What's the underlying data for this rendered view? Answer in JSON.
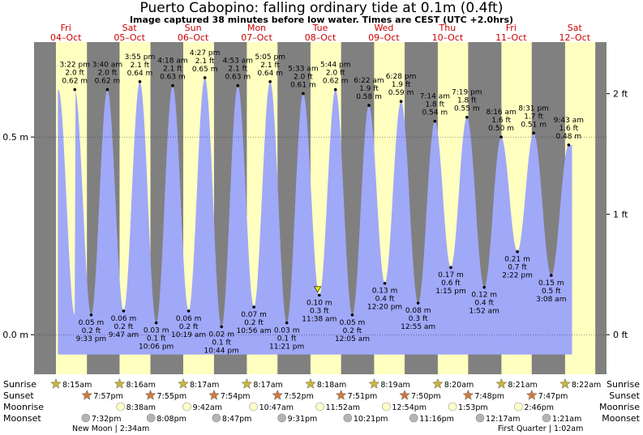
{
  "title": "Puerto Cabopino: falling  ordinary tide at 0.1m (0.4ft)",
  "subtitle": "Image captured 38 minutes before low water. Times are CEST (UTC +2.0hrs)",
  "colors": {
    "night": "#808080",
    "day": "#ffffc0",
    "water": "#a0a8f8",
    "day_label": "#cc0000",
    "sun_star": "#c8b43c",
    "sunset_star": "#d0783c",
    "moonrise": "#ffffc8",
    "moonset": "#b4b4b4",
    "current_marker": "#e8e800"
  },
  "days": [
    {
      "name": "Fri",
      "date": "04–Oct"
    },
    {
      "name": "Sat",
      "date": "05–Oct"
    },
    {
      "name": "Sun",
      "date": "06–Oct"
    },
    {
      "name": "Mon",
      "date": "07–Oct"
    },
    {
      "name": "Tue",
      "date": "08–Oct"
    },
    {
      "name": "Wed",
      "date": "09–Oct"
    },
    {
      "name": "Thu",
      "date": "10–Oct"
    },
    {
      "name": "Fri",
      "date": "11–Oct"
    },
    {
      "name": "Sat",
      "date": "12–Oct"
    }
  ],
  "chart_data": {
    "type": "area",
    "title": "Puerto Cabopino: falling  ordinary tide at 0.1m (0.4ft)",
    "left_axis": {
      "unit": "m",
      "ticks": [
        "0.5 m",
        "0.0 m"
      ],
      "values": [
        0.5,
        0.0
      ]
    },
    "right_axis": {
      "unit": "ft",
      "ticks": [
        "2 ft",
        "1 ft",
        "0 ft"
      ],
      "values": [
        2,
        1,
        0
      ]
    },
    "ylim": [
      -0.1,
      0.74
    ],
    "x_start": "2024-10-04 00:00",
    "x_end": "2024-10-12 23:59",
    "series_start": "2024-10-04 09:00",
    "series_end": "2024-10-12 11:00",
    "current_time": "2024-10-08 11:00",
    "tides": [
      {
        "time": "04-Oct 15:22",
        "label": "3:22 pm",
        "ft": "2.0 ft",
        "m": "0.62 m",
        "height": 0.62,
        "type": "high"
      },
      {
        "time": "04-Oct 21:33",
        "label": "9:33 pm",
        "ft": "0.2 ft",
        "m": "0.05 m",
        "height": 0.05,
        "type": "low"
      },
      {
        "time": "05-Oct 03:40",
        "label": "3:40 am",
        "ft": "2.0 ft",
        "m": "0.62 m",
        "height": 0.62,
        "type": "high"
      },
      {
        "time": "05-Oct 09:47",
        "label": "9:47 am",
        "ft": "0.2 ft",
        "m": "0.06 m",
        "height": 0.06,
        "type": "low"
      },
      {
        "time": "05-Oct 15:55",
        "label": "3:55 pm",
        "ft": "2.1 ft",
        "m": "0.64 m",
        "height": 0.64,
        "type": "high"
      },
      {
        "time": "05-Oct 22:06",
        "label": "10:06 pm",
        "ft": "0.1 ft",
        "m": "0.03 m",
        "height": 0.03,
        "type": "low"
      },
      {
        "time": "06-Oct 04:18",
        "label": "4:18 am",
        "ft": "2.1 ft",
        "m": "0.63 m",
        "height": 0.63,
        "type": "high"
      },
      {
        "time": "06-Oct 10:19",
        "label": "10:19 am",
        "ft": "0.2 ft",
        "m": "0.06 m",
        "height": 0.06,
        "type": "low"
      },
      {
        "time": "06-Oct 16:27",
        "label": "4:27 pm",
        "ft": "2.1 ft",
        "m": "0.65 m",
        "height": 0.65,
        "type": "high"
      },
      {
        "time": "06-Oct 22:44",
        "label": "10:44 pm",
        "ft": "0.1 ft",
        "m": "0.02 m",
        "height": 0.02,
        "type": "low"
      },
      {
        "time": "07-Oct 04:53",
        "label": "4:53 am",
        "ft": "2.1 ft",
        "m": "0.63 m",
        "height": 0.63,
        "type": "high"
      },
      {
        "time": "07-Oct 10:56",
        "label": "10:56 am",
        "ft": "0.2 ft",
        "m": "0.07 m",
        "height": 0.07,
        "type": "low"
      },
      {
        "time": "07-Oct 17:05",
        "label": "5:05 pm",
        "ft": "2.1 ft",
        "m": "0.64 m",
        "height": 0.64,
        "type": "high"
      },
      {
        "time": "07-Oct 23:21",
        "label": "11:21 pm",
        "ft": "0.1 ft",
        "m": "0.03 m",
        "height": 0.03,
        "type": "low"
      },
      {
        "time": "08-Oct 05:33",
        "label": "5:33 am",
        "ft": "2.0 ft",
        "m": "0.61 m",
        "height": 0.61,
        "type": "high"
      },
      {
        "time": "08-Oct 11:38",
        "label": "11:38 am",
        "ft": "0.3 ft",
        "m": "0.10 m",
        "height": 0.1,
        "type": "low"
      },
      {
        "time": "08-Oct 17:44",
        "label": "5:44 pm",
        "ft": "2.0 ft",
        "m": "0.62 m",
        "height": 0.62,
        "type": "high"
      },
      {
        "time": "09-Oct 00:05",
        "label": "12:05 am",
        "ft": "0.2 ft",
        "m": "0.05 m",
        "height": 0.05,
        "type": "low"
      },
      {
        "time": "09-Oct 06:22",
        "label": "6:22 am",
        "ft": "1.9 ft",
        "m": "0.58 m",
        "height": 0.58,
        "type": "high"
      },
      {
        "time": "09-Oct 12:20",
        "label": "12:20 pm",
        "ft": "0.4 ft",
        "m": "0.13 m",
        "height": 0.13,
        "type": "low"
      },
      {
        "time": "09-Oct 18:28",
        "label": "6:28 pm",
        "ft": "1.9 ft",
        "m": "0.59 m",
        "height": 0.59,
        "type": "high"
      },
      {
        "time": "10-Oct 00:55",
        "label": "12:55 am",
        "ft": "0.3 ft",
        "m": "0.08 m",
        "height": 0.08,
        "type": "low"
      },
      {
        "time": "10-Oct 07:14",
        "label": "7:14 am",
        "ft": "1.8 ft",
        "m": "0.54 m",
        "height": 0.54,
        "type": "high"
      },
      {
        "time": "10-Oct 13:15",
        "label": "1:15 pm",
        "ft": "0.6 ft",
        "m": "0.17 m",
        "height": 0.17,
        "type": "low"
      },
      {
        "time": "10-Oct 19:19",
        "label": "7:19 pm",
        "ft": "1.8 ft",
        "m": "0.55 m",
        "height": 0.55,
        "type": "high"
      },
      {
        "time": "11-Oct 01:52",
        "label": "1:52 am",
        "ft": "0.4 ft",
        "m": "0.12 m",
        "height": 0.12,
        "type": "low"
      },
      {
        "time": "11-Oct 08:16",
        "label": "8:16 am",
        "ft": "1.6 ft",
        "m": "0.50 m",
        "height": 0.5,
        "type": "high"
      },
      {
        "time": "11-Oct 14:22",
        "label": "2:22 pm",
        "ft": "0.7 ft",
        "m": "0.21 m",
        "height": 0.21,
        "type": "low"
      },
      {
        "time": "11-Oct 20:31",
        "label": "8:31 pm",
        "ft": "1.7 ft",
        "m": "0.51 m",
        "height": 0.51,
        "type": "high"
      },
      {
        "time": "12-Oct 03:08",
        "label": "3:08 am",
        "ft": "0.5 ft",
        "m": "0.15 m",
        "height": 0.15,
        "type": "low"
      },
      {
        "time": "12-Oct 09:43",
        "label": "9:43 am",
        "ft": "1.6 ft",
        "m": "0.48 m",
        "height": 0.48,
        "type": "high"
      }
    ],
    "sunrise": [
      "8:15am",
      "8:16am",
      "8:17am",
      "8:17am",
      "8:18am",
      "8:19am",
      "8:20am",
      "8:21am",
      "8:22am"
    ],
    "sunset": [
      "7:57pm",
      "7:55pm",
      "7:54pm",
      "7:52pm",
      "7:51pm",
      "7:50pm",
      "7:48pm",
      "7:47pm"
    ],
    "moonrise": [
      "8:38am",
      "9:42am",
      "10:47am",
      "11:52am",
      "12:54pm",
      "1:53pm",
      "2:46pm"
    ],
    "moonset": [
      "7:32pm",
      "8:08pm",
      "8:47pm",
      "9:31pm",
      "10:21pm",
      "11:16pm",
      "12:17am",
      "1:21am"
    ],
    "moon_phases": [
      {
        "label": "New Moon | 2:34am",
        "day": "Fri 04-Oct"
      },
      {
        "label": "First Quarter | 1:02am",
        "day": "Fri 11-Oct"
      }
    ]
  },
  "row_labels": {
    "sunrise": "Sunrise",
    "sunset": "Sunset",
    "moonrise": "Moonrise",
    "moonset": "Moonset"
  }
}
